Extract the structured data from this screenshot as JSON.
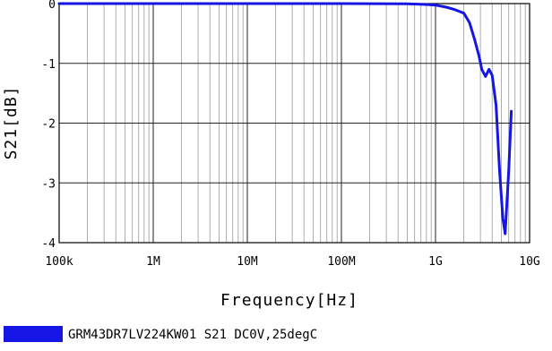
{
  "chart_data": {
    "type": "line",
    "title": "",
    "xlabel": "Frequency[Hz]",
    "ylabel": "S21[dB]",
    "x_scale": "log",
    "xlim": [
      100000,
      10000000000
    ],
    "ylim": [
      -4,
      0
    ],
    "x_tick_values": [
      100000,
      1000000,
      10000000,
      100000000,
      1000000000,
      10000000000
    ],
    "x_tick_labels": [
      "100k",
      "1M",
      "10M",
      "100M",
      "1G",
      "10G"
    ],
    "y_tick_values": [
      0,
      -1,
      -2,
      -3,
      -4
    ],
    "y_tick_labels": [
      "0",
      "-1",
      "-2",
      "-3",
      "-4"
    ],
    "grid": true,
    "legend_position": "bottom-left",
    "series": [
      {
        "name": "GRM43DR7LV224KW01 S21 DC0V,25degC",
        "color": "#1515e6",
        "x": [
          100000,
          1000000,
          10000000,
          100000000,
          500000000,
          800000000,
          1000000000,
          1300000000,
          1600000000,
          2000000000,
          2300000000,
          2600000000,
          2900000000,
          3100000000,
          3400000000,
          3700000000,
          4000000000,
          4400000000,
          4800000000,
          5200000000,
          5500000000,
          6000000000,
          6400000000
        ],
        "y": [
          0,
          0,
          0,
          0,
          -0.005,
          -0.015,
          -0.025,
          -0.06,
          -0.1,
          -0.16,
          -0.32,
          -0.6,
          -0.88,
          -1.1,
          -1.22,
          -1.1,
          -1.2,
          -1.7,
          -2.8,
          -3.6,
          -3.85,
          -2.8,
          -1.8
        ]
      }
    ]
  }
}
